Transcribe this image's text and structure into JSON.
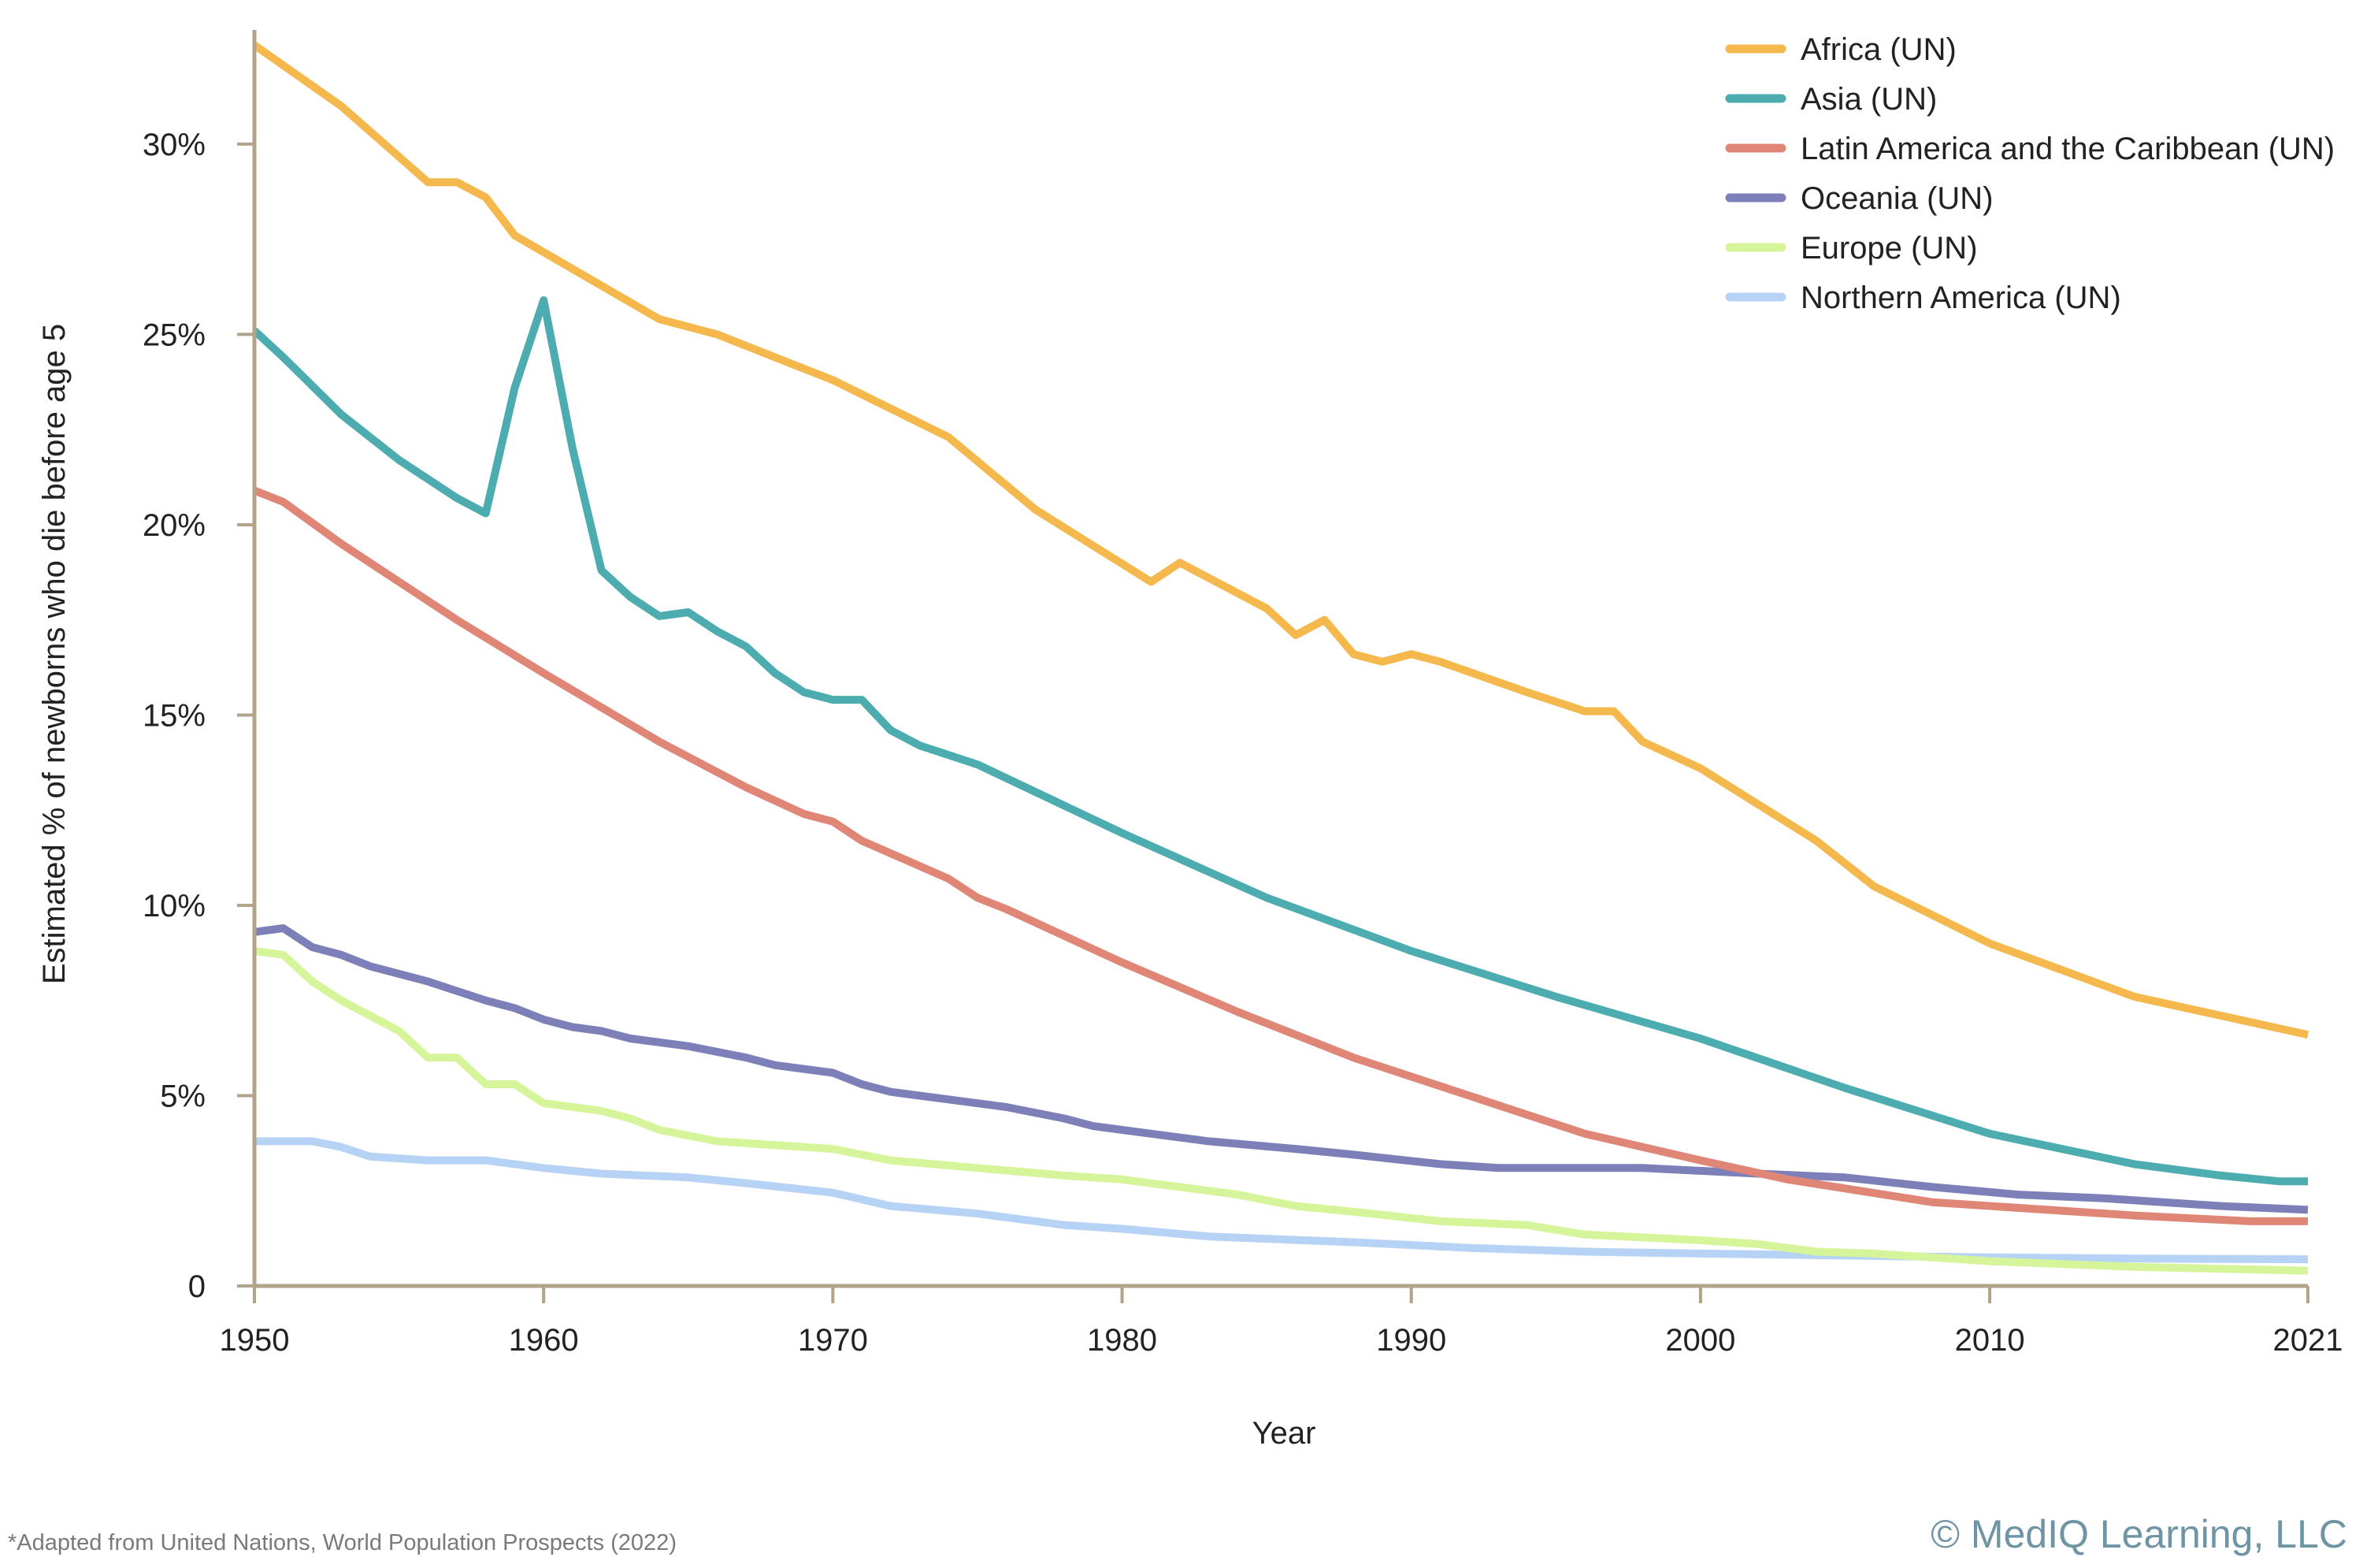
{
  "chart_data": {
    "type": "line",
    "xlabel": "Year",
    "ylabel": "Estimated % of newborns who die before age 5",
    "xlim": [
      1950,
      2021
    ],
    "ylim": [
      0,
      33
    ],
    "x_ticks": [
      1950,
      1960,
      1970,
      1980,
      1990,
      2000,
      2010,
      2021
    ],
    "y_ticks": [
      {
        "value": 0,
        "label": "0"
      },
      {
        "value": 5,
        "label": "5%"
      },
      {
        "value": 10,
        "label": "10%"
      },
      {
        "value": 15,
        "label": "15%"
      },
      {
        "value": 20,
        "label": "20%"
      },
      {
        "value": 25,
        "label": "25%"
      },
      {
        "value": 30,
        "label": "30%"
      }
    ],
    "grid": false,
    "legend_position": "top-right",
    "series": [
      {
        "name": "Africa (UN)",
        "color": "#f5b84d",
        "points": [
          [
            1950,
            32.6
          ],
          [
            1953,
            31.0
          ],
          [
            1956,
            29.0
          ],
          [
            1957,
            29.0
          ],
          [
            1958,
            28.6
          ],
          [
            1959,
            27.6
          ],
          [
            1964,
            25.4
          ],
          [
            1966,
            25.0
          ],
          [
            1970,
            23.8
          ],
          [
            1974,
            22.3
          ],
          [
            1977,
            20.4
          ],
          [
            1981,
            18.5
          ],
          [
            1982,
            19.0
          ],
          [
            1985,
            17.8
          ],
          [
            1986,
            17.1
          ],
          [
            1987,
            17.5
          ],
          [
            1988,
            16.6
          ],
          [
            1989,
            16.4
          ],
          [
            1990,
            16.6
          ],
          [
            1991,
            16.4
          ],
          [
            1994,
            15.6
          ],
          [
            1996,
            15.1
          ],
          [
            1997,
            15.1
          ],
          [
            1998,
            14.3
          ],
          [
            2000,
            13.6
          ],
          [
            2004,
            11.7
          ],
          [
            2006,
            10.5
          ],
          [
            2010,
            9.0
          ],
          [
            2015,
            7.6
          ],
          [
            2018,
            7.1
          ],
          [
            2021,
            6.6
          ]
        ]
      },
      {
        "name": "Asia (UN)",
        "color": "#4cacaf",
        "points": [
          [
            1950,
            25.1
          ],
          [
            1951,
            24.4
          ],
          [
            1953,
            22.9
          ],
          [
            1955,
            21.7
          ],
          [
            1957,
            20.7
          ],
          [
            1958,
            20.3
          ],
          [
            1959,
            23.6
          ],
          [
            1960,
            25.9
          ],
          [
            1961,
            22.0
          ],
          [
            1962,
            18.8
          ],
          [
            1963,
            18.1
          ],
          [
            1964,
            17.6
          ],
          [
            1965,
            17.7
          ],
          [
            1966,
            17.2
          ],
          [
            1967,
            16.8
          ],
          [
            1968,
            16.1
          ],
          [
            1969,
            15.6
          ],
          [
            1970,
            15.4
          ],
          [
            1971,
            15.4
          ],
          [
            1972,
            14.6
          ],
          [
            1973,
            14.2
          ],
          [
            1975,
            13.7
          ],
          [
            1980,
            11.9
          ],
          [
            1985,
            10.2
          ],
          [
            1990,
            8.8
          ],
          [
            1995,
            7.6
          ],
          [
            2000,
            6.5
          ],
          [
            2005,
            5.2
          ],
          [
            2010,
            4.0
          ],
          [
            2015,
            3.2
          ],
          [
            2018,
            2.9
          ],
          [
            2020,
            2.75
          ],
          [
            2021,
            2.75
          ]
        ]
      },
      {
        "name": "Latin America and the Caribbean (UN)",
        "color": "#df8677",
        "points": [
          [
            1950,
            20.9
          ],
          [
            1951,
            20.6
          ],
          [
            1953,
            19.5
          ],
          [
            1955,
            18.5
          ],
          [
            1957,
            17.5
          ],
          [
            1960,
            16.1
          ],
          [
            1964,
            14.3
          ],
          [
            1967,
            13.1
          ],
          [
            1969,
            12.4
          ],
          [
            1970,
            12.2
          ],
          [
            1971,
            11.7
          ],
          [
            1974,
            10.7
          ],
          [
            1975,
            10.2
          ],
          [
            1976,
            9.9
          ],
          [
            1980,
            8.5
          ],
          [
            1984,
            7.2
          ],
          [
            1988,
            6.0
          ],
          [
            1992,
            5.0
          ],
          [
            1996,
            4.0
          ],
          [
            2000,
            3.3
          ],
          [
            2003,
            2.8
          ],
          [
            2008,
            2.2
          ],
          [
            2015,
            1.85
          ],
          [
            2019,
            1.7
          ],
          [
            2021,
            1.7
          ]
        ]
      },
      {
        "name": "Oceania (UN)",
        "color": "#7d7fb9",
        "points": [
          [
            1950,
            9.3
          ],
          [
            1951,
            9.4
          ],
          [
            1952,
            8.9
          ],
          [
            1953,
            8.7
          ],
          [
            1954,
            8.4
          ],
          [
            1956,
            8.0
          ],
          [
            1958,
            7.5
          ],
          [
            1959,
            7.3
          ],
          [
            1960,
            7.0
          ],
          [
            1961,
            6.8
          ],
          [
            1962,
            6.7
          ],
          [
            1963,
            6.5
          ],
          [
            1965,
            6.3
          ],
          [
            1967,
            6.0
          ],
          [
            1968,
            5.8
          ],
          [
            1970,
            5.6
          ],
          [
            1971,
            5.3
          ],
          [
            1972,
            5.1
          ],
          [
            1974,
            4.9
          ],
          [
            1976,
            4.7
          ],
          [
            1978,
            4.4
          ],
          [
            1979,
            4.2
          ],
          [
            1981,
            4.0
          ],
          [
            1983,
            3.8
          ],
          [
            1986,
            3.6
          ],
          [
            1988,
            3.45
          ],
          [
            1991,
            3.2
          ],
          [
            1993,
            3.1
          ],
          [
            1998,
            3.1
          ],
          [
            2002,
            2.95
          ],
          [
            2005,
            2.85
          ],
          [
            2008,
            2.6
          ],
          [
            2011,
            2.4
          ],
          [
            2014,
            2.3
          ],
          [
            2018,
            2.1
          ],
          [
            2021,
            2.0
          ]
        ]
      },
      {
        "name": "Europe (UN)",
        "color": "#d6f59b",
        "points": [
          [
            1950,
            8.8
          ],
          [
            1951,
            8.7
          ],
          [
            1952,
            8.0
          ],
          [
            1953,
            7.5
          ],
          [
            1955,
            6.7
          ],
          [
            1956,
            6.0
          ],
          [
            1957,
            6.0
          ],
          [
            1958,
            5.3
          ],
          [
            1959,
            5.3
          ],
          [
            1960,
            4.8
          ],
          [
            1962,
            4.6
          ],
          [
            1963,
            4.4
          ],
          [
            1964,
            4.1
          ],
          [
            1966,
            3.8
          ],
          [
            1970,
            3.6
          ],
          [
            1972,
            3.3
          ],
          [
            1975,
            3.1
          ],
          [
            1978,
            2.9
          ],
          [
            1980,
            2.8
          ],
          [
            1984,
            2.4
          ],
          [
            1986,
            2.1
          ],
          [
            1988,
            1.95
          ],
          [
            1991,
            1.7
          ],
          [
            1994,
            1.6
          ],
          [
            1996,
            1.35
          ],
          [
            2000,
            1.2
          ],
          [
            2002,
            1.1
          ],
          [
            2004,
            0.9
          ],
          [
            2006,
            0.85
          ],
          [
            2010,
            0.65
          ],
          [
            2015,
            0.5
          ],
          [
            2021,
            0.4
          ]
        ]
      },
      {
        "name": "Northern America (UN)",
        "color": "#b6d3f5",
        "points": [
          [
            1950,
            3.8
          ],
          [
            1952,
            3.8
          ],
          [
            1953,
            3.65
          ],
          [
            1954,
            3.4
          ],
          [
            1956,
            3.3
          ],
          [
            1958,
            3.3
          ],
          [
            1960,
            3.1
          ],
          [
            1962,
            2.95
          ],
          [
            1965,
            2.85
          ],
          [
            1967,
            2.7
          ],
          [
            1970,
            2.45
          ],
          [
            1972,
            2.1
          ],
          [
            1975,
            1.9
          ],
          [
            1978,
            1.6
          ],
          [
            1980,
            1.5
          ],
          [
            1983,
            1.3
          ],
          [
            1988,
            1.15
          ],
          [
            1992,
            1.0
          ],
          [
            1996,
            0.9
          ],
          [
            2000,
            0.85
          ],
          [
            2005,
            0.8
          ],
          [
            2010,
            0.75
          ],
          [
            2015,
            0.72
          ],
          [
            2021,
            0.7
          ]
        ]
      }
    ]
  },
  "footer": {
    "source": "*Adapted from United Nations, World Population Prospects (2022)",
    "copyright": "© MedIQ Learning, LLC"
  }
}
